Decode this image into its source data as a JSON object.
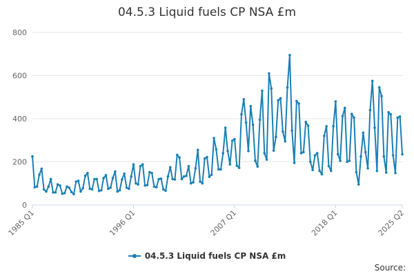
{
  "chart_data": {
    "type": "line",
    "title": "04.5.3 Liquid fuels CP NSA £m",
    "xlabel": "",
    "ylabel": "",
    "ylim": [
      0,
      800
    ],
    "yticks": [
      0,
      200,
      400,
      600,
      800
    ],
    "x_tick_labels": [
      "1985 Q1",
      "1996 Q1",
      "2007 Q1",
      "2018 Q1",
      "2025 Q2"
    ],
    "grid": true,
    "legend_position": "bottom",
    "series_color": "#1a7fb4",
    "x_start": "1985 Q1",
    "series": [
      {
        "name": "04.5.3 Liquid fuels CP NSA £m",
        "values": [
          225,
          82,
          85,
          140,
          168,
          72,
          62,
          85,
          120,
          58,
          58,
          95,
          90,
          52,
          55,
          85,
          80,
          60,
          50,
          108,
          112,
          62,
          78,
          135,
          148,
          75,
          72,
          120,
          120,
          65,
          68,
          125,
          138,
          75,
          80,
          125,
          155,
          62,
          68,
          118,
          145,
          80,
          75,
          132,
          188,
          100,
          95,
          180,
          188,
          90,
          92,
          152,
          148,
          85,
          82,
          120,
          122,
          72,
          66,
          132,
          175,
          120,
          118,
          232,
          220,
          120,
          132,
          135,
          180,
          100,
          105,
          170,
          255,
          108,
          100,
          215,
          222,
          130,
          140,
          310,
          258,
          165,
          165,
          240,
          358,
          250,
          188,
          298,
          305,
          182,
          172,
          420,
          490,
          382,
          250,
          458,
          372,
          205,
          178,
          395,
          530,
          240,
          210,
          610,
          540,
          252,
          315,
          485,
          495,
          340,
          295,
          545,
          695,
          345,
          195,
          482,
          470,
          240,
          245,
          385,
          368,
          200,
          162,
          230,
          240,
          158,
          142,
          320,
          365,
          180,
          158,
          365,
          480,
          235,
          205,
          412,
          450,
          200,
          205,
          422,
          405,
          152,
          95,
          225,
          335,
          245,
          170,
          440,
          575,
          358,
          158,
          545,
          505,
          225,
          150,
          430,
          420,
          230,
          148,
          405,
          410,
          235
        ]
      }
    ]
  },
  "source_label": "Source:"
}
